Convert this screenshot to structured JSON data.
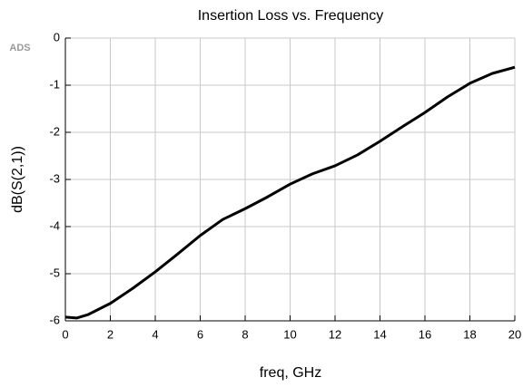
{
  "chart_data": {
    "type": "line",
    "title": "Insertion Loss vs. Frequency",
    "annotation": "ADS",
    "x_label": "freq, GHz",
    "y_label": "dB(S(2,1))",
    "x": [
      0,
      0.5,
      1,
      2,
      3,
      4,
      5,
      6,
      7,
      8,
      9,
      10,
      11,
      12,
      13,
      14,
      15,
      16,
      17,
      18,
      19,
      20
    ],
    "values": [
      -5.92,
      -5.94,
      -5.87,
      -5.63,
      -5.31,
      -4.96,
      -4.58,
      -4.19,
      -3.85,
      -3.62,
      -3.37,
      -3.1,
      -2.88,
      -2.71,
      -2.48,
      -2.19,
      -1.88,
      -1.58,
      -1.25,
      -0.96,
      -0.75,
      -0.62
    ],
    "color": "#000000",
    "xlim": [
      0,
      20
    ],
    "xticks": [
      0,
      2,
      4,
      6,
      8,
      10,
      12,
      14,
      16,
      18,
      20
    ],
    "ylim": [
      -6,
      0
    ],
    "yticks": [
      0,
      -1,
      -2,
      -3,
      -4,
      -5,
      -6
    ],
    "grid": true
  }
}
